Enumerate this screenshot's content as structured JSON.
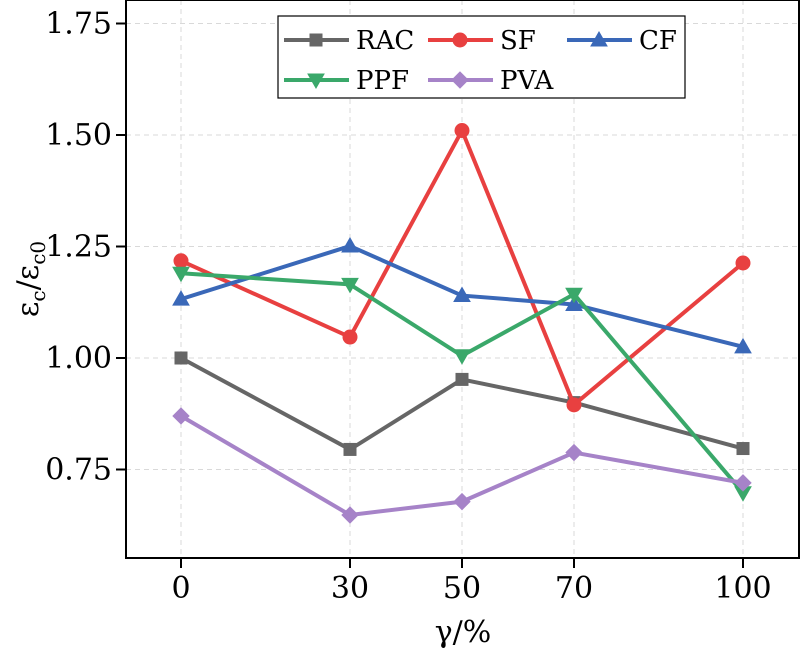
{
  "chart_data": {
    "type": "line",
    "categories": [
      "0",
      "30",
      "50",
      "70",
      "100"
    ],
    "series": [
      {
        "name": "RAC",
        "color": "#666666",
        "marker": "square",
        "values": [
          1.0,
          0.795,
          0.952,
          0.9,
          0.797
        ]
      },
      {
        "name": "SF",
        "color": "#e84040",
        "marker": "circle",
        "values": [
          1.218,
          1.047,
          1.51,
          0.895,
          1.213
        ]
      },
      {
        "name": "CF",
        "color": "#3a68b8",
        "marker": "triangle-up",
        "values": [
          1.132,
          1.251,
          1.14,
          1.12,
          1.025
        ]
      },
      {
        "name": "PPF",
        "color": "#3aa86a",
        "marker": "triangle-down",
        "values": [
          1.19,
          1.165,
          1.005,
          1.143,
          0.698
        ]
      },
      {
        "name": "PVA",
        "color": "#a683c8",
        "marker": "diamond",
        "values": [
          0.87,
          0.648,
          0.678,
          0.788,
          0.72
        ]
      }
    ],
    "xlabel": "γ/%",
    "ylabel_main": "ε",
    "ylabel_sub_c": "c",
    "ylabel_slash": "/ε",
    "ylabel_sub_c0": "c0",
    "ylim": [
      0.6,
      1.8
    ],
    "yticks": [
      0.75,
      1.0,
      1.25,
      1.5,
      1.75
    ],
    "ytick_labels": [
      "0.75",
      "1.00",
      "1.25",
      "1.50",
      "1.75"
    ],
    "grid": true,
    "legend": {
      "position": "top-center",
      "columns": 3
    }
  }
}
